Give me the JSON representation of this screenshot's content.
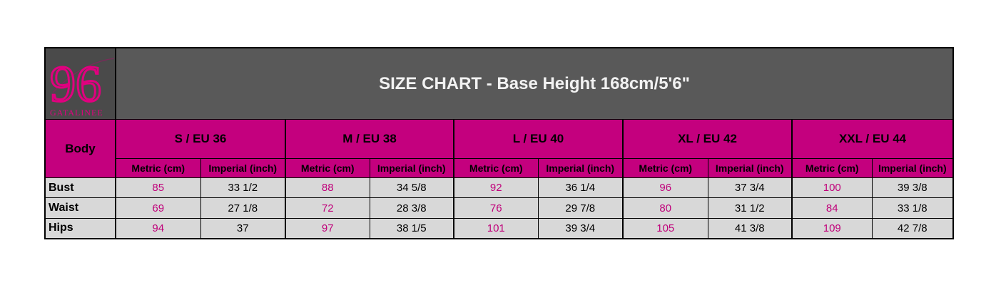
{
  "brand": {
    "logo_number": "96",
    "logo_text": "GATALINEE"
  },
  "title": "SIZE CHART - Base Height 168cm/5'6\"",
  "body_label": "Body",
  "units": {
    "metric": "Metric (cm)",
    "imperial": "Imperial (inch)"
  },
  "sizes": [
    {
      "label": "S / EU 36"
    },
    {
      "label": "M / EU 38"
    },
    {
      "label": "L / EU 40"
    },
    {
      "label": "XL / EU 42"
    },
    {
      "label": "XXL / EU 44"
    }
  ],
  "rows": [
    {
      "label": "Bust",
      "values": [
        [
          "85",
          "33 1/2"
        ],
        [
          "88",
          "34 5/8"
        ],
        [
          "92",
          "36 1/4"
        ],
        [
          "96",
          "37 3/4"
        ],
        [
          "100",
          "39 3/8"
        ]
      ]
    },
    {
      "label": "Waist",
      "values": [
        [
          "69",
          "27 1/8"
        ],
        [
          "72",
          "28 3/8"
        ],
        [
          "76",
          "29 7/8"
        ],
        [
          "80",
          "31 1/2"
        ],
        [
          "84",
          "33 1/8"
        ]
      ]
    },
    {
      "label": "Hips",
      "values": [
        [
          "94",
          "37"
        ],
        [
          "97",
          "38 1/5"
        ],
        [
          "101",
          "39 3/4"
        ],
        [
          "105",
          "41 3/8"
        ],
        [
          "109",
          "42 7/8"
        ]
      ]
    }
  ],
  "colors": {
    "header_pink": "#c4007e",
    "title_bg": "#595959",
    "cell_bg": "#d8d8d8",
    "metric_text": "#c0007a"
  }
}
